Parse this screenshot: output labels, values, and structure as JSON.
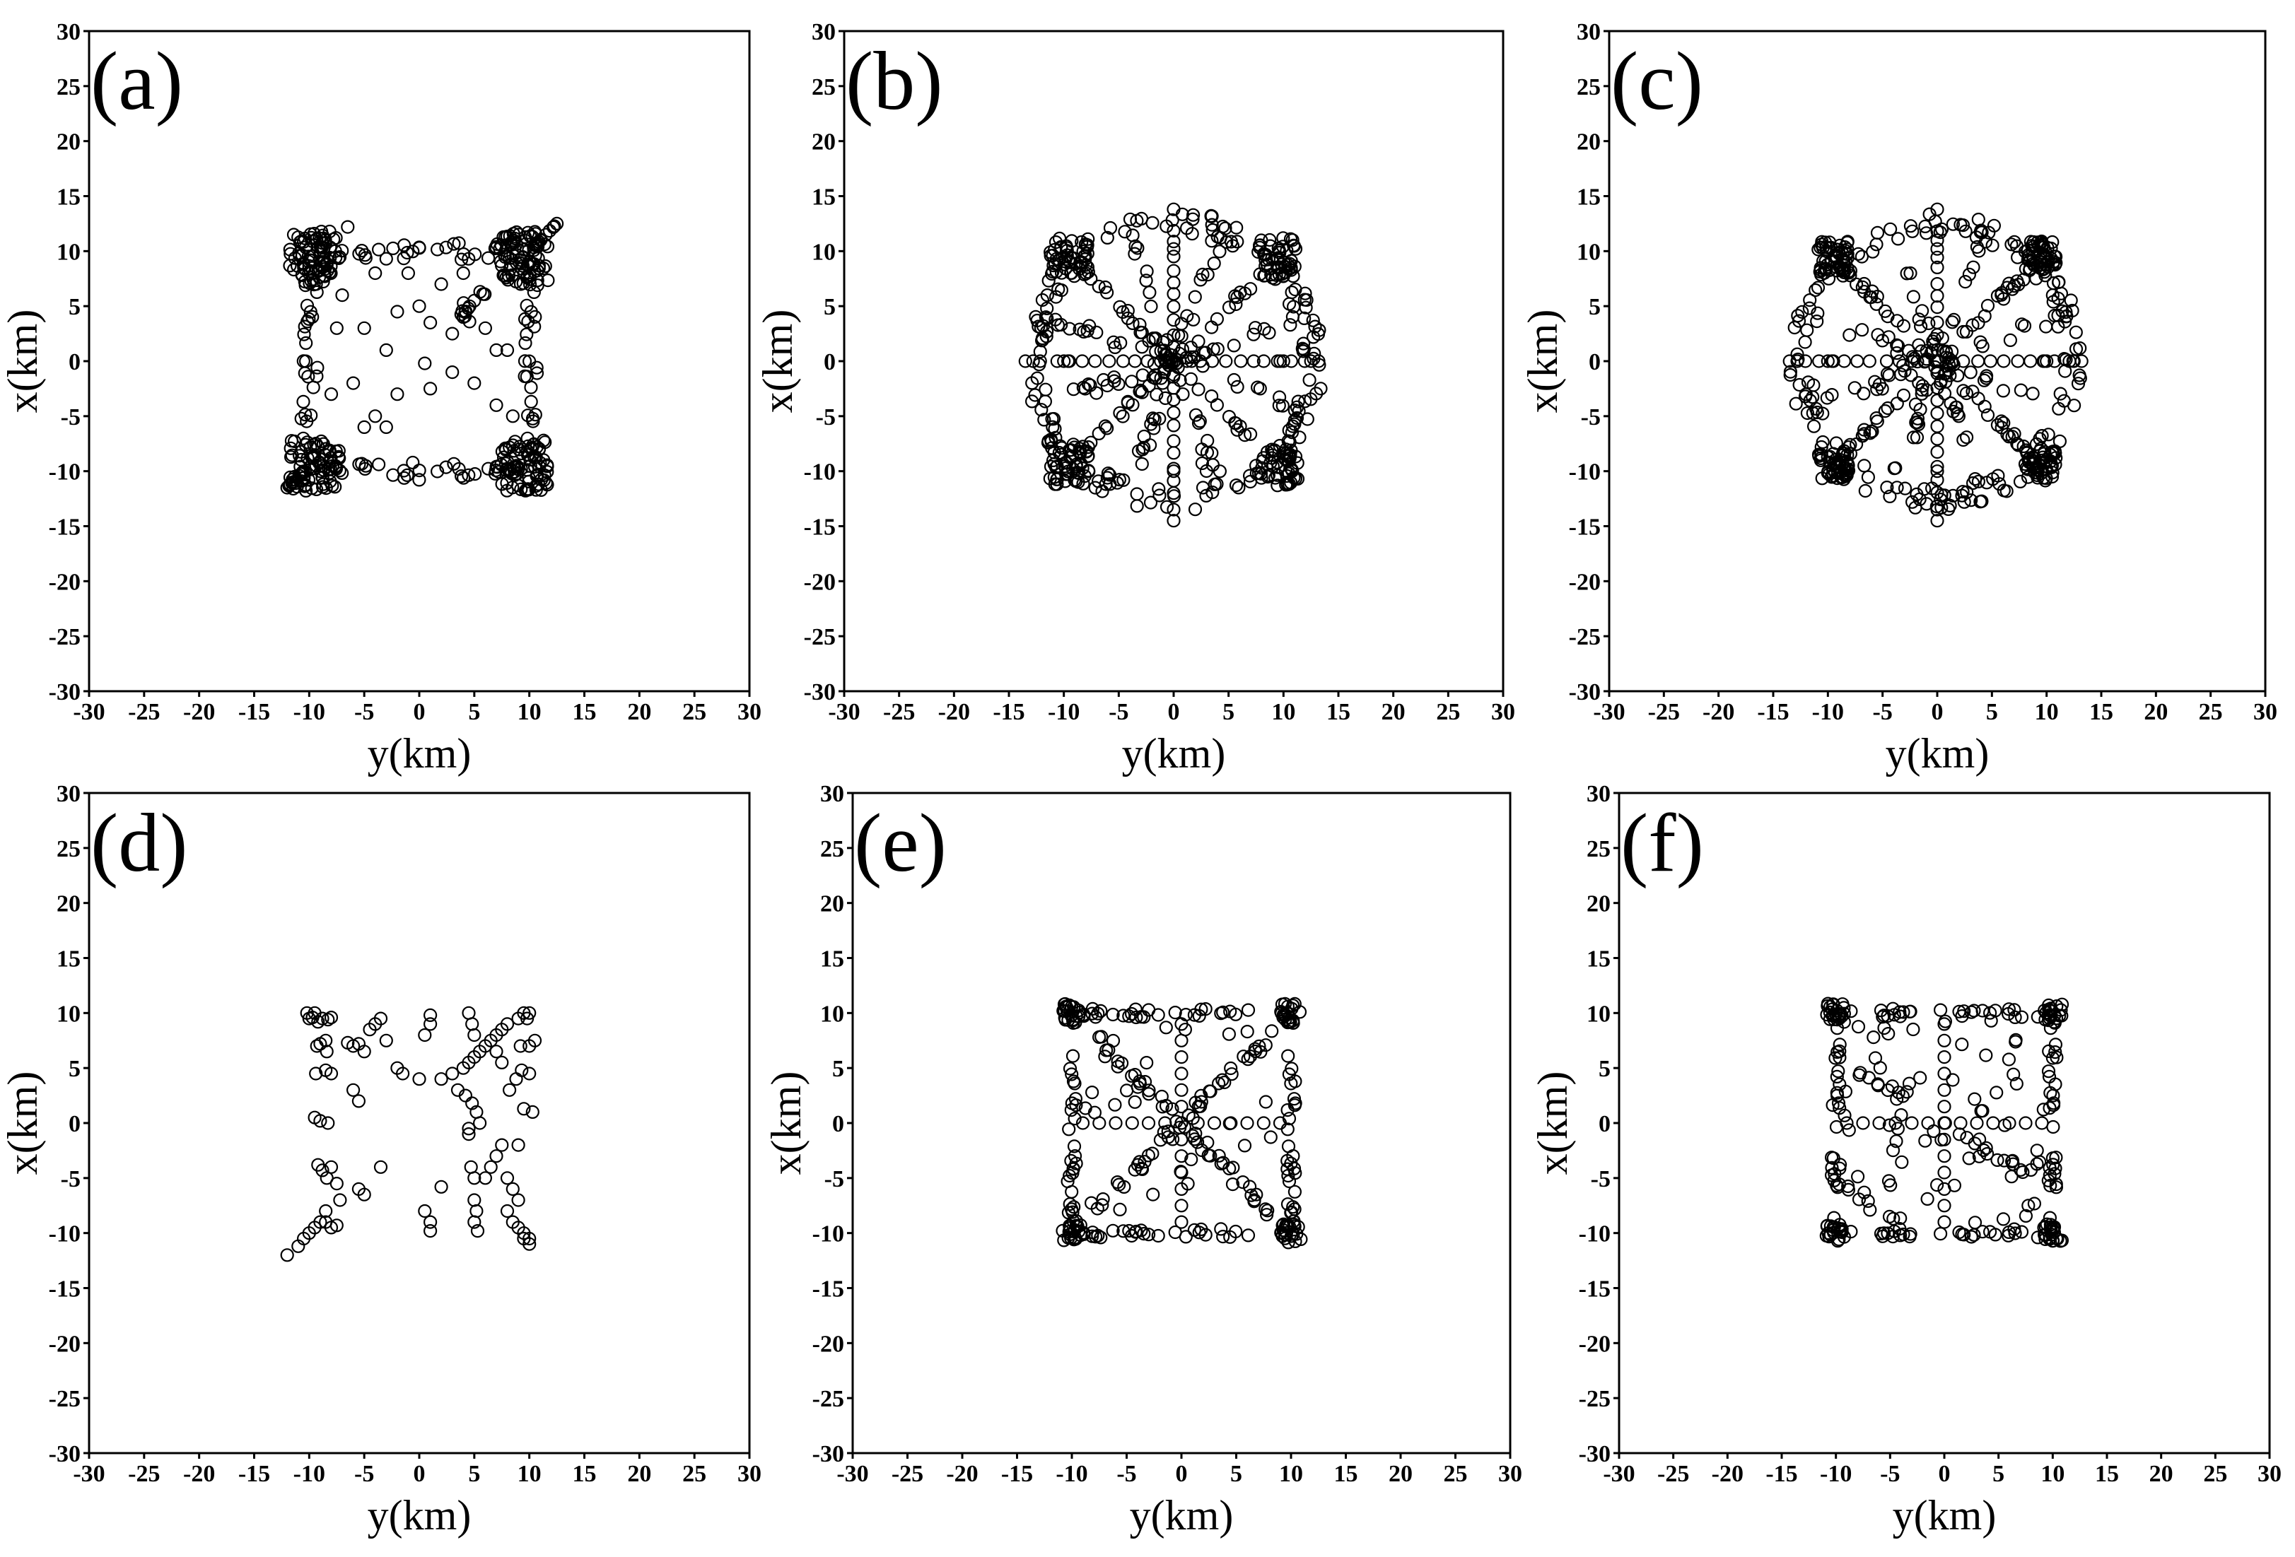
{
  "chart_data": [
    {
      "type": "scatter",
      "panel_label": "(a)",
      "xlabel": "y(km)",
      "ylabel": "x(km)",
      "xlim": [
        -30,
        30
      ],
      "ylim": [
        -30,
        30
      ],
      "xticks": [
        "-30",
        "-25",
        "-20",
        "-15",
        "-10",
        "-5",
        "0",
        "5",
        "10",
        "15",
        "20",
        "25",
        "30"
      ],
      "yticks": [
        "30",
        "25",
        "20",
        "15",
        "10",
        "5",
        "0",
        "-5",
        "-10",
        "-15",
        "-20",
        "-25",
        "-30"
      ],
      "grid": false,
      "pattern": "square-random",
      "corner_arms": [
        [
          -12,
          -11.5
        ],
        [
          12.5,
          12.5
        ],
        [
          -6.5,
          12.2
        ]
      ],
      "interior": [
        [
          -7,
          6
        ],
        [
          -5,
          3
        ],
        [
          -3,
          1
        ],
        [
          -2,
          -3
        ],
        [
          0,
          5
        ],
        [
          1,
          3.5
        ],
        [
          3,
          2.5
        ],
        [
          4,
          4
        ],
        [
          5,
          5.5
        ],
        [
          6,
          3
        ],
        [
          3,
          -1
        ],
        [
          5,
          -2
        ],
        [
          7,
          -4
        ],
        [
          -4,
          -5
        ],
        [
          -5,
          -6
        ],
        [
          -6,
          -2
        ],
        [
          -3,
          -6
        ],
        [
          2,
          7
        ],
        [
          4,
          8
        ],
        [
          -1,
          8
        ],
        [
          -2,
          4.5
        ],
        [
          0.5,
          -0.2
        ],
        [
          -7.5,
          3
        ],
        [
          -4,
          8
        ],
        [
          1,
          -2.5
        ],
        [
          7,
          1
        ],
        [
          8,
          1
        ],
        [
          8.5,
          -5
        ],
        [
          -8,
          -3
        ],
        [
          -3,
          9.3
        ]
      ]
    },
    {
      "type": "scatter",
      "panel_label": "(b)",
      "xlabel": "y(km)",
      "ylabel": "x(km)",
      "xlim": [
        -30,
        30
      ],
      "ylim": [
        -30,
        30
      ],
      "xticks": [
        "-30",
        "-25",
        "-20",
        "-15",
        "-10",
        "-5",
        "0",
        "5",
        "10",
        "15",
        "20",
        "25",
        "30"
      ],
      "yticks": [
        "30",
        "25",
        "20",
        "15",
        "10",
        "5",
        "0",
        "-5",
        "-10",
        "-15",
        "-20",
        "-25",
        "-30"
      ],
      "grid": false,
      "pattern": "circle-octagon",
      "radius": 13.5
    },
    {
      "type": "scatter",
      "panel_label": "(c)",
      "xlabel": "y(km)",
      "ylabel": "x(km)",
      "xlim": [
        -30,
        30
      ],
      "ylim": [
        -30,
        30
      ],
      "xticks": [
        "-30",
        "-25",
        "-20",
        "-15",
        "-10",
        "-5",
        "0",
        "5",
        "10",
        "15",
        "20",
        "25",
        "30"
      ],
      "yticks": [
        "30",
        "25",
        "20",
        "15",
        "10",
        "5",
        "0",
        "-5",
        "-10",
        "-15",
        "-20",
        "-25",
        "-30"
      ],
      "grid": false,
      "pattern": "circle-square-corners",
      "radius": 13.3
    },
    {
      "type": "scatter",
      "panel_label": "(d)",
      "xlabel": "y(km)",
      "ylabel": "x(km)",
      "xlim": [
        -30,
        30
      ],
      "ylim": [
        -30,
        30
      ],
      "xticks": [
        "-30",
        "-25",
        "-20",
        "-15",
        "-10",
        "-5",
        "0",
        "5",
        "10",
        "15",
        "20",
        "25",
        "30"
      ],
      "yticks": [
        "30",
        "25",
        "20",
        "15",
        "10",
        "5",
        "0",
        "-5",
        "-10",
        "-15",
        "-20",
        "-25",
        "-30"
      ],
      "grid": false,
      "pattern": "sparse-cross",
      "points": [
        [
          -12,
          -12
        ],
        [
          -11,
          -11.2
        ],
        [
          -10.5,
          -10.5
        ],
        [
          -10,
          -10
        ],
        [
          -9.5,
          -9.5
        ],
        [
          -9,
          -9
        ],
        [
          -10.2,
          10
        ],
        [
          -9.7,
          9.6
        ],
        [
          -9.2,
          9.2
        ],
        [
          -10,
          9.5
        ],
        [
          -9.5,
          10
        ],
        [
          -8.8,
          9.5
        ],
        [
          -8.3,
          9.4
        ],
        [
          -8,
          9.6
        ],
        [
          -8.5,
          7.5
        ],
        [
          -9,
          7.2
        ],
        [
          -9.3,
          7
        ],
        [
          -8.4,
          6.5
        ],
        [
          -8,
          4.5
        ],
        [
          -8.5,
          4.8
        ],
        [
          -9.4,
          4.5
        ],
        [
          -9.5,
          0.5
        ],
        [
          -9,
          0.2
        ],
        [
          -8.3,
          0
        ],
        [
          -8,
          -4
        ],
        [
          -8.8,
          -4.3
        ],
        [
          -9.2,
          -3.8
        ],
        [
          -8.4,
          -5
        ],
        [
          -7.5,
          -5.5
        ],
        [
          -8.5,
          -9
        ],
        [
          -8,
          -9.5
        ],
        [
          -7.5,
          -9.3
        ],
        [
          -7.2,
          -7
        ],
        [
          -8.5,
          -8
        ],
        [
          -6.5,
          7.3
        ],
        [
          -6,
          7
        ],
        [
          -5.5,
          7.2
        ],
        [
          -5,
          6.5
        ],
        [
          -4.5,
          8.5
        ],
        [
          -4,
          9
        ],
        [
          -3.5,
          9.5
        ],
        [
          -3,
          7.5
        ],
        [
          -6,
          3
        ],
        [
          -5.5,
          2
        ],
        [
          -3.5,
          -4
        ],
        [
          -5.5,
          -6
        ],
        [
          -5,
          -6.5
        ],
        [
          -2,
          5
        ],
        [
          -1.5,
          4.5
        ],
        [
          0,
          4
        ],
        [
          0.5,
          8
        ],
        [
          1,
          9
        ],
        [
          1,
          9.8
        ],
        [
          0.5,
          -8
        ],
        [
          1,
          -9
        ],
        [
          1,
          -9.8
        ],
        [
          2,
          -5.8
        ],
        [
          2,
          4
        ],
        [
          3,
          4.5
        ],
        [
          3.5,
          3
        ],
        [
          4,
          5
        ],
        [
          4.5,
          5.5
        ],
        [
          5,
          6
        ],
        [
          5.5,
          6.5
        ],
        [
          6,
          7
        ],
        [
          6.5,
          7.5
        ],
        [
          7,
          8
        ],
        [
          7.5,
          8.5
        ],
        [
          8,
          9
        ],
        [
          9,
          9.5
        ],
        [
          9.5,
          10
        ],
        [
          10,
          10
        ],
        [
          9.8,
          9.5
        ],
        [
          4.2,
          2.5
        ],
        [
          4.8,
          1.8
        ],
        [
          5.2,
          1
        ],
        [
          5.5,
          0
        ],
        [
          4.5,
          -0.5
        ],
        [
          4.5,
          -1
        ],
        [
          4.5,
          10
        ],
        [
          4.8,
          9
        ],
        [
          5,
          8
        ],
        [
          4.7,
          -4
        ],
        [
          5,
          -5
        ],
        [
          5,
          -7
        ],
        [
          5.2,
          -8
        ],
        [
          5,
          -9
        ],
        [
          5.3,
          -9.8
        ],
        [
          6,
          -5
        ],
        [
          6.5,
          -4
        ],
        [
          7,
          -3
        ],
        [
          7.5,
          -2
        ],
        [
          8,
          -8
        ],
        [
          8.5,
          -9
        ],
        [
          9,
          -9.5
        ],
        [
          9.5,
          -10
        ],
        [
          10,
          -10.5
        ],
        [
          10,
          -11
        ],
        [
          9.5,
          -10.5
        ],
        [
          8,
          -5
        ],
        [
          8.5,
          -6
        ],
        [
          9,
          -7
        ],
        [
          8.2,
          3
        ],
        [
          8.8,
          4
        ],
        [
          9.3,
          4.8
        ],
        [
          10,
          4.5
        ],
        [
          10.3,
          1
        ],
        [
          9.5,
          1.3
        ],
        [
          9,
          -2
        ],
        [
          10,
          7
        ],
        [
          10.5,
          7.5
        ],
        [
          9.2,
          7
        ],
        [
          7,
          6.5
        ],
        [
          7.5,
          5.5
        ]
      ]
    },
    {
      "type": "scatter",
      "panel_label": "(e)",
      "xlabel": "y(km)",
      "ylabel": "x(km)",
      "xlim": [
        -30,
        30
      ],
      "ylim": [
        -30,
        30
      ],
      "xticks": [
        "-30",
        "-25",
        "-20",
        "-15",
        "-10",
        "-5",
        "0",
        "5",
        "10",
        "15",
        "20",
        "25",
        "30"
      ],
      "yticks": [
        "30",
        "25",
        "20",
        "15",
        "10",
        "5",
        "0",
        "-5",
        "-10",
        "-15",
        "-20",
        "-25",
        "-30"
      ],
      "grid": false,
      "pattern": "square-star",
      "half_side": 10
    },
    {
      "type": "scatter",
      "panel_label": "(f)",
      "xlabel": "y(km)",
      "ylabel": "x(km)",
      "xlim": [
        -30,
        30
      ],
      "ylim": [
        -30,
        30
      ],
      "xticks": [
        "-30",
        "-25",
        "-20",
        "-15",
        "-10",
        "-5",
        "0",
        "5",
        "10",
        "15",
        "20",
        "25",
        "30"
      ],
      "yticks": [
        "30",
        "25",
        "20",
        "15",
        "10",
        "5",
        "0",
        "-5",
        "-10",
        "-15",
        "-20",
        "-25",
        "-30"
      ],
      "grid": false,
      "pattern": "square-grid",
      "half_side": 10
    }
  ]
}
